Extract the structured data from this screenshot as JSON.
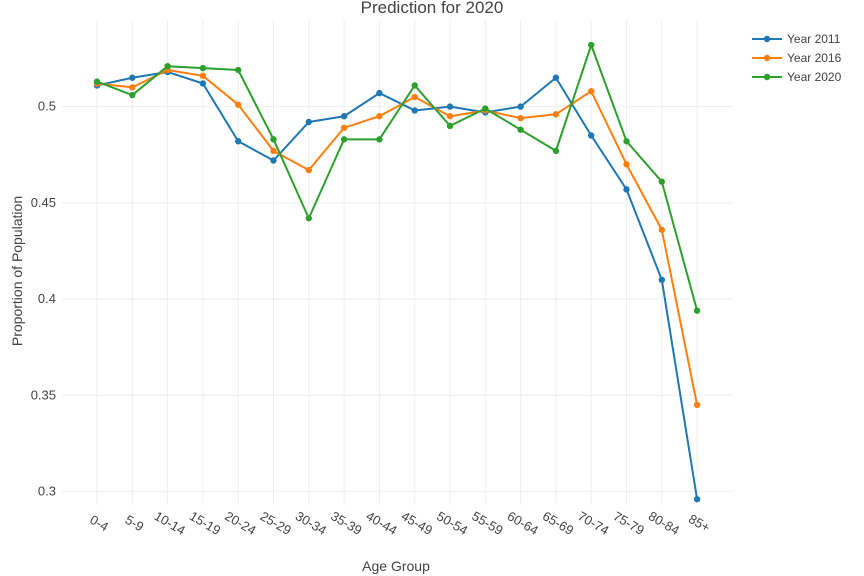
{
  "chart_data": {
    "type": "line",
    "title": "Prediction for 2020",
    "xlabel": "Age Group",
    "ylabel": "Proportion of Population",
    "categories": [
      "0-4",
      "5-9",
      "10-14",
      "15-19",
      "20-24",
      "25-29",
      "30-34",
      "35-39",
      "40-44",
      "45-49",
      "50-54",
      "55-59",
      "60-64",
      "65-69",
      "70-74",
      "75-79",
      "80-84",
      "85+"
    ],
    "ylim": [
      0.293,
      0.545
    ],
    "yticks": [
      0.3,
      0.35,
      0.4,
      0.45,
      0.5
    ],
    "ytick_labels": [
      "0.3",
      "0.35",
      "0.4",
      "0.45",
      "0.5"
    ],
    "grid": true,
    "legend_position": "top-right",
    "series": [
      {
        "name": "Year 2011",
        "color": "#1f77b4",
        "values": [
          0.511,
          0.515,
          0.518,
          0.512,
          0.482,
          0.472,
          0.492,
          0.495,
          0.507,
          0.498,
          0.5,
          0.497,
          0.5,
          0.515,
          0.485,
          0.457,
          0.41,
          0.296
        ]
      },
      {
        "name": "Year 2016",
        "color": "#ff7f0e",
        "values": [
          0.512,
          0.51,
          0.519,
          0.516,
          0.501,
          0.477,
          0.467,
          0.489,
          0.495,
          0.505,
          0.495,
          0.498,
          0.494,
          0.496,
          0.508,
          0.47,
          0.436,
          0.345
        ]
      },
      {
        "name": "Year 2020",
        "color": "#2ca02c",
        "values": [
          0.513,
          0.506,
          0.521,
          0.52,
          0.519,
          0.483,
          0.442,
          0.483,
          0.483,
          0.511,
          0.49,
          0.499,
          0.488,
          0.477,
          0.532,
          0.482,
          0.461,
          0.394
        ]
      }
    ]
  }
}
